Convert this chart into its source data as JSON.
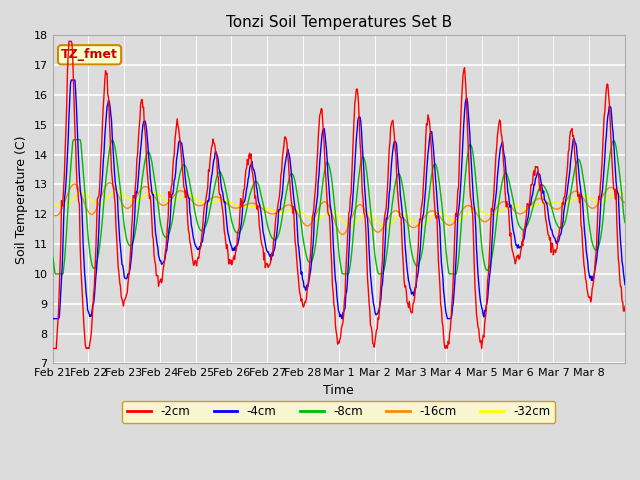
{
  "title": "Tonzi Soil Temperatures Set B",
  "xlabel": "Time",
  "ylabel": "Soil Temperature (C)",
  "ylim": [
    7.0,
    18.0
  ],
  "yticks": [
    7.0,
    8.0,
    9.0,
    10.0,
    11.0,
    12.0,
    13.0,
    14.0,
    15.0,
    16.0,
    17.0,
    18.0
  ],
  "background_color": "#dcdcdc",
  "plot_bg_color": "#dcdcdc",
  "grid_color": "#ffffff",
  "colors": {
    "-2cm": "#ff0000",
    "-4cm": "#0000ff",
    "-8cm": "#00bb00",
    "-16cm": "#ff8800",
    "-32cm": "#ffff00"
  },
  "legend_box_color": "#ffffcc",
  "legend_box_edge": "#cc8800",
  "annotation_text": "TZ_fmet",
  "annotation_color": "#cc0000",
  "annotation_bg": "#ffffcc",
  "annotation_edge": "#cc8800",
  "xtick_labels": [
    "Feb 21",
    "Feb 22",
    "Feb 23",
    "Feb 24",
    "Feb 25",
    "Feb 26",
    "Feb 27",
    "Feb 28",
    "Mar 1",
    "Mar 2",
    "Mar 3",
    "Mar 4",
    "Mar 5",
    "Mar 6",
    "Mar 7",
    "Mar 8"
  ],
  "days": 16
}
